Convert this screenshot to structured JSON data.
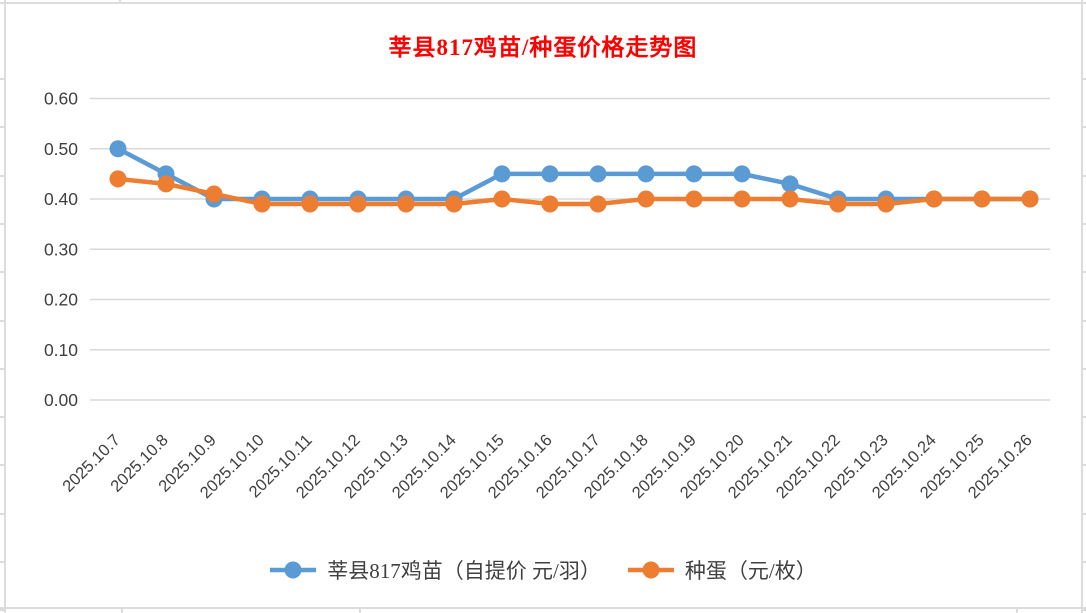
{
  "title": {
    "text": "莘县817鸡苗/种蛋价格走势图"
  },
  "colors": {
    "title": "#FF0000",
    "gridline": "#D9D9D9",
    "axis_text": "#404040",
    "sheet_lines": "#DCDCDC",
    "background": "#FFFFFF"
  },
  "chart_data": {
    "type": "line",
    "title": "莘县817鸡苗/种蛋价格走势图",
    "categories": [
      "2025.10.7",
      "2025.10.8",
      "2025.10.9",
      "2025.10.10",
      "2025.10.11",
      "2025.10.12",
      "2025.10.13",
      "2025.10.14",
      "2025.10.15",
      "2025.10.16",
      "2025.10.17",
      "2025.10.18",
      "2025.10.19",
      "2025.10.20",
      "2025.10.21",
      "2025.10.22",
      "2025.10.23",
      "2025.10.24",
      "2025.10.25",
      "2025.10.26"
    ],
    "series": [
      {
        "name": "莘县817鸡苗（自提价 元/羽）",
        "color": "#5B9BD5",
        "values": [
          0.5,
          0.45,
          0.4,
          0.4,
          0.4,
          0.4,
          0.4,
          0.4,
          0.45,
          0.45,
          0.45,
          0.45,
          0.45,
          0.45,
          0.43,
          0.4,
          0.4,
          0.4,
          0.4,
          0.4
        ]
      },
      {
        "name": "种蛋（元/枚）",
        "color": "#ED7D31",
        "values": [
          0.44,
          0.43,
          0.41,
          0.39,
          0.39,
          0.39,
          0.39,
          0.39,
          0.4,
          0.39,
          0.39,
          0.4,
          0.4,
          0.4,
          0.4,
          0.39,
          0.39,
          0.4,
          0.4,
          0.4
        ]
      }
    ],
    "ylim": [
      0.0,
      0.6
    ],
    "ytick_step": 0.1,
    "ytick_labels": [
      "0.00",
      "0.10",
      "0.20",
      "0.30",
      "0.40",
      "0.50",
      "0.60"
    ],
    "grid": "horizontal",
    "legend_position": "bottom",
    "marker": "circle"
  }
}
